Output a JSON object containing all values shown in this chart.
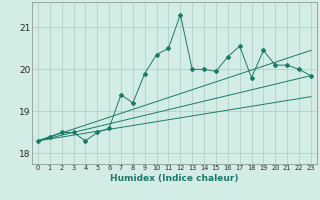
{
  "title": "",
  "xlabel": "Humidex (Indice chaleur)",
  "bg_color": "#d4ece6",
  "grid_color": "#a8cdc6",
  "line_color": "#1a7a6a",
  "xlim": [
    -0.5,
    23.5
  ],
  "ylim": [
    17.75,
    21.6
  ],
  "xticks": [
    0,
    1,
    2,
    3,
    4,
    5,
    6,
    7,
    8,
    9,
    10,
    11,
    12,
    13,
    14,
    15,
    16,
    17,
    18,
    19,
    20,
    21,
    22,
    23
  ],
  "yticks": [
    18,
    19,
    20,
    21
  ],
  "main_series": [
    [
      0,
      18.3
    ],
    [
      1,
      18.4
    ],
    [
      2,
      18.5
    ],
    [
      3,
      18.5
    ],
    [
      4,
      18.3
    ],
    [
      5,
      18.5
    ],
    [
      6,
      18.6
    ],
    [
      7,
      19.4
    ],
    [
      8,
      19.2
    ],
    [
      9,
      19.9
    ],
    [
      10,
      20.35
    ],
    [
      11,
      20.5
    ],
    [
      12,
      21.3
    ],
    [
      13,
      20.0
    ],
    [
      14,
      20.0
    ],
    [
      15,
      19.95
    ],
    [
      16,
      20.3
    ],
    [
      17,
      20.55
    ],
    [
      18,
      19.8
    ],
    [
      19,
      20.45
    ],
    [
      20,
      20.1
    ],
    [
      21,
      20.1
    ],
    [
      22,
      20.0
    ],
    [
      23,
      19.85
    ]
  ],
  "line1": [
    [
      0,
      18.3
    ],
    [
      23,
      19.85
    ]
  ],
  "line2": [
    [
      0,
      18.3
    ],
    [
      23,
      20.45
    ]
  ],
  "line3": [
    [
      0,
      18.3
    ],
    [
      23,
      19.35
    ]
  ]
}
